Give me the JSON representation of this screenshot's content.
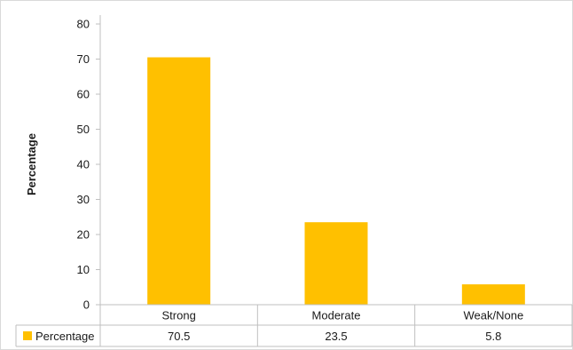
{
  "chart_data": {
    "type": "bar",
    "categories": [
      "Strong",
      "Moderate",
      "Weak/None"
    ],
    "series": [
      {
        "name": "Percentage",
        "values": [
          70.5,
          23.5,
          5.8
        ],
        "color": "#FFC000"
      }
    ],
    "ylabel": "Percentage",
    "ylim": [
      0,
      80
    ],
    "yticks": [
      0,
      10,
      20,
      30,
      40,
      50,
      60,
      70,
      80
    ],
    "data_table": true,
    "grid": false
  }
}
